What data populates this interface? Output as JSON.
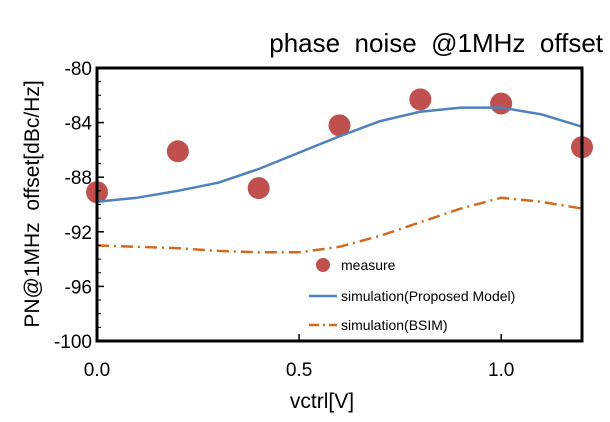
{
  "chart_data": {
    "type": "line",
    "title": "phase  noise  @1MHz  offset",
    "xlabel": "vctrl[V]",
    "ylabel": "PN@1MHz  offset[dBc/Hz]",
    "xlim": [
      0.0,
      1.2
    ],
    "ylim": [
      -100,
      -80
    ],
    "x_ticks": [
      "0.0",
      "0.5",
      "1.0"
    ],
    "y_ticks": [
      "-80",
      "-84",
      "-88",
      "-92",
      "-96",
      "-100"
    ],
    "grid": false,
    "legend_position": "bottom-center",
    "series": [
      {
        "name": "measure",
        "style": "markers",
        "color": "#c0504d",
        "x": [
          0.0,
          0.2,
          0.4,
          0.6,
          0.8,
          1.0,
          1.2
        ],
        "y": [
          -89.1,
          -86.1,
          -88.8,
          -84.2,
          -82.3,
          -82.6,
          -85.8
        ]
      },
      {
        "name": "simulation(Proposed Model)",
        "style": "solid",
        "color": "#4f81bd",
        "x": [
          0.0,
          0.1,
          0.2,
          0.3,
          0.4,
          0.5,
          0.6,
          0.7,
          0.8,
          0.9,
          1.0,
          1.1,
          1.2
        ],
        "y": [
          -89.8,
          -89.5,
          -89.0,
          -88.4,
          -87.4,
          -86.2,
          -85.0,
          -83.9,
          -83.2,
          -82.9,
          -82.9,
          -83.4,
          -84.3
        ]
      },
      {
        "name": "simulation(BSIM)",
        "style": "dash-dot",
        "color": "#d2691e",
        "x": [
          0.0,
          0.1,
          0.2,
          0.3,
          0.4,
          0.5,
          0.6,
          0.7,
          0.8,
          0.9,
          1.0,
          1.1,
          1.2
        ],
        "y": [
          -93.0,
          -93.1,
          -93.2,
          -93.4,
          -93.5,
          -93.5,
          -93.1,
          -92.3,
          -91.3,
          -90.3,
          -89.5,
          -89.8,
          -90.3
        ]
      }
    ]
  }
}
